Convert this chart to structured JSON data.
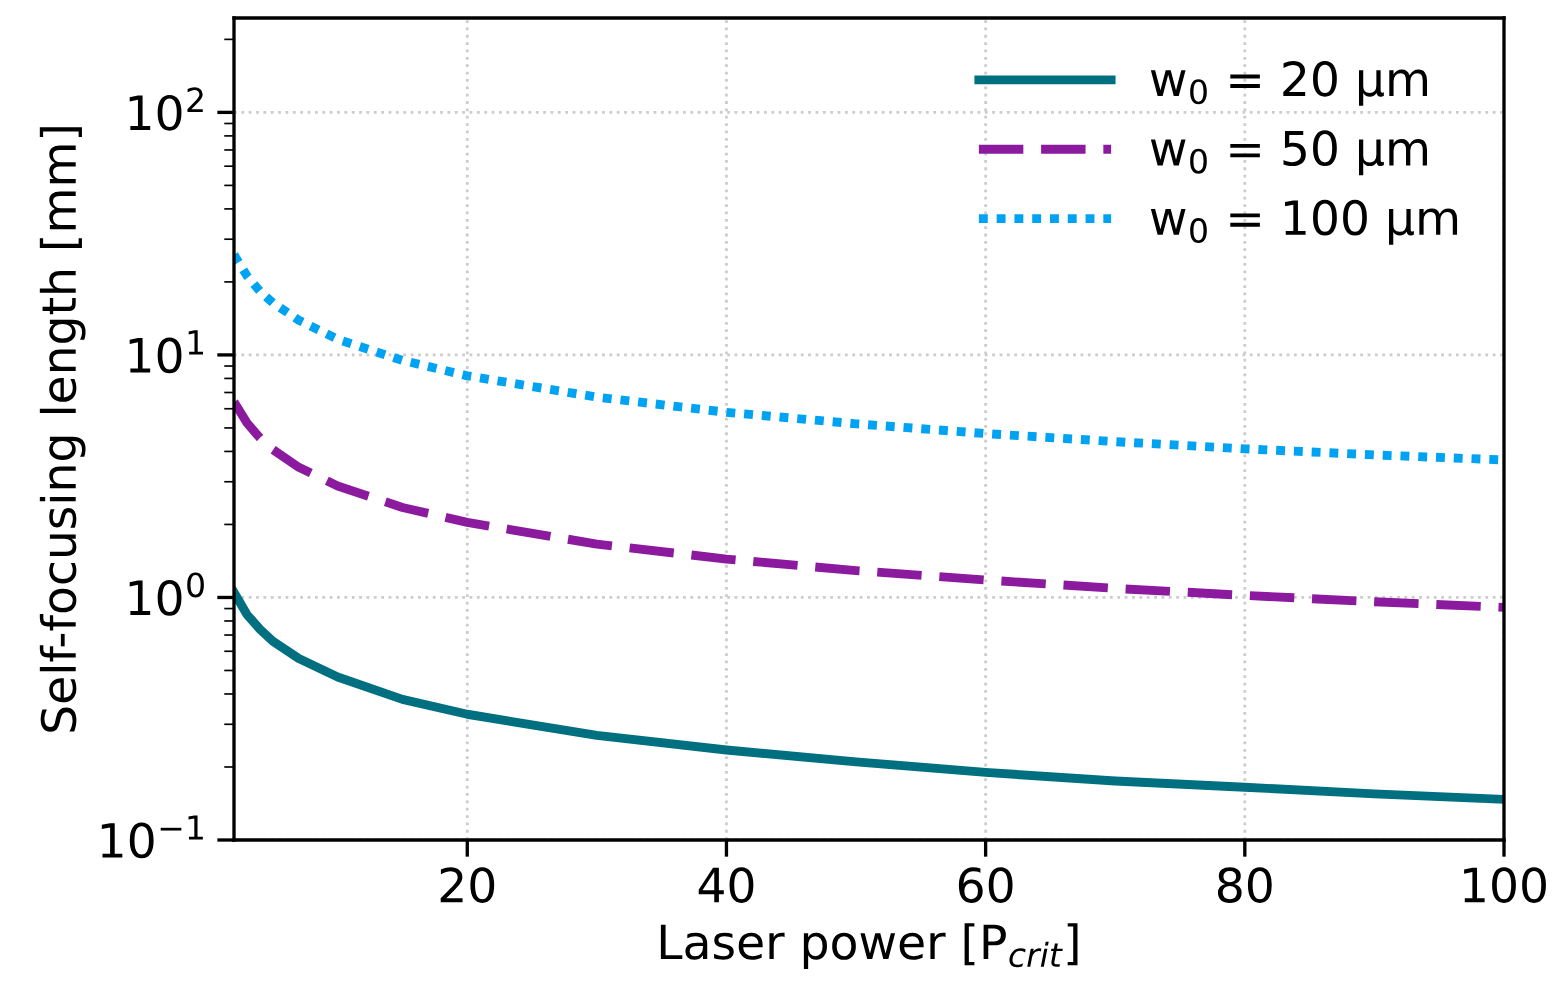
{
  "chart_data": {
    "type": "line",
    "xlabel": "Laser power [P$_{crit}$]",
    "ylabel": "Self-focusing length [mm]",
    "x": [
      2,
      3,
      4,
      5,
      7,
      10,
      15,
      20,
      30,
      40,
      50,
      60,
      70,
      80,
      90,
      100
    ],
    "series": [
      {
        "name": "w$_{0}$ = 20 μm",
        "color": "#007080",
        "line_style": "solid",
        "values": [
          1.05,
          0.85,
          0.74,
          0.66,
          0.56,
          0.47,
          0.38,
          0.33,
          0.27,
          0.235,
          0.21,
          0.19,
          0.175,
          0.165,
          0.155,
          0.147
        ]
      },
      {
        "name": "w$_{0}$ = 50 μm",
        "color": "#8b1a9e",
        "line_style": "dashed",
        "values": [
          6.4,
          5.25,
          4.55,
          4.07,
          3.44,
          2.88,
          2.35,
          2.04,
          1.66,
          1.44,
          1.29,
          1.18,
          1.09,
          1.02,
          0.96,
          0.91
        ]
      },
      {
        "name": "w$_{0}$ = 100 μm",
        "color": "#00a2f2",
        "line_style": "dotted",
        "values": [
          25.9,
          21.2,
          18.3,
          16.4,
          13.9,
          11.6,
          9.5,
          8.2,
          6.7,
          5.8,
          5.2,
          4.74,
          4.39,
          4.1,
          3.87,
          3.69
        ]
      }
    ],
    "log": "y",
    "xlim": [
      2,
      100
    ],
    "ylim": [
      0.1,
      245
    ],
    "xticks": [
      20,
      40,
      60,
      80,
      100
    ],
    "yticks": [
      {
        "value": 0.1,
        "label": "10$^{−1}$"
      },
      {
        "value": 1,
        "label": "10$^{0}$"
      },
      {
        "value": 10,
        "label": "10$^{1}$"
      },
      {
        "value": 100,
        "label": "10$^{2}$"
      }
    ],
    "grid": true,
    "legend": "top right",
    "marker": "none"
  }
}
